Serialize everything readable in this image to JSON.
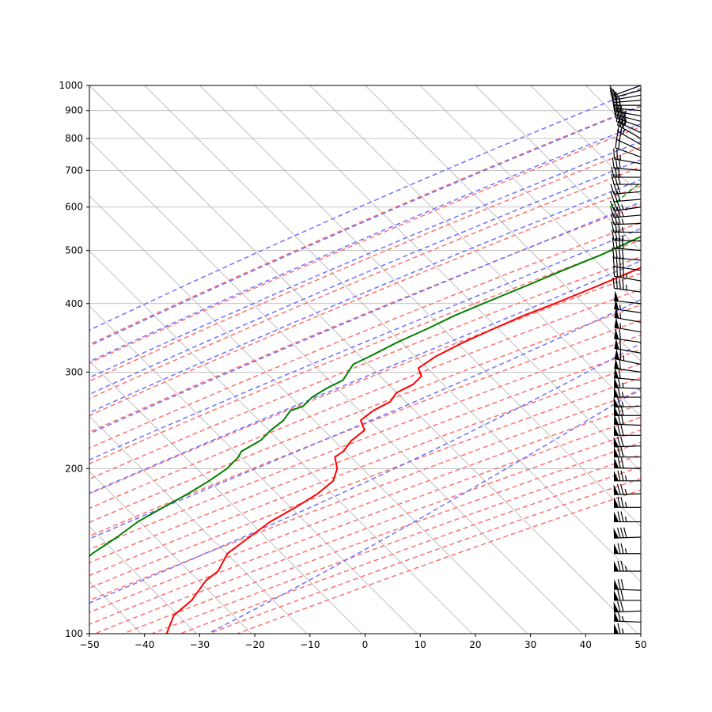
{
  "chart_data": {
    "type": "line",
    "title": "",
    "xlabel": "",
    "ylabel": "",
    "x_scale": "linear",
    "y_scale": "log",
    "y_inverted": true,
    "xlim": [
      -50,
      50
    ],
    "ylim": [
      1000,
      100
    ],
    "skew_degrees": 45,
    "grid": true,
    "x_ticks": [
      -50,
      -40,
      -30,
      -20,
      -10,
      0,
      10,
      20,
      30,
      40,
      50
    ],
    "x_tick_labels": [
      "−50",
      "−40",
      "−30",
      "−20",
      "−10",
      "0",
      "10",
      "20",
      "30",
      "40",
      "50"
    ],
    "y_ticks": [
      1000,
      900,
      800,
      700,
      600,
      500,
      400,
      300,
      200,
      100
    ],
    "y_tick_labels": [
      "1000",
      "900",
      "800",
      "700",
      "600",
      "500",
      "400",
      "300",
      "200",
      "100"
    ],
    "series": [
      {
        "kind": "temperature",
        "color": "#ff0000",
        "points": [
          [
            1000,
            8.3
          ],
          [
            970,
            4.6
          ],
          [
            940,
            2.5
          ],
          [
            910,
            1.0
          ],
          [
            880,
            0.2
          ],
          [
            850,
            3.0
          ],
          [
            830,
            9.5
          ],
          [
            810,
            14.0
          ],
          [
            790,
            11.5
          ],
          [
            760,
            6.5
          ],
          [
            730,
            2.5
          ],
          [
            700,
            0.0
          ],
          [
            670,
            -3.0
          ],
          [
            640,
            -5.0
          ],
          [
            610,
            -5.5
          ],
          [
            580,
            -6.5
          ],
          [
            550,
            -8.0
          ],
          [
            520,
            -10.5
          ],
          [
            490,
            -13.5
          ],
          [
            460,
            -17.0
          ],
          [
            430,
            -21.0
          ],
          [
            400,
            -25.5
          ],
          [
            380,
            -29.0
          ],
          [
            360,
            -32.0
          ],
          [
            340,
            -35.0
          ],
          [
            320,
            -37.5
          ],
          [
            305,
            -38.5
          ],
          [
            295,
            -36.5
          ],
          [
            285,
            -36.5
          ],
          [
            275,
            -38.0
          ],
          [
            265,
            -37.5
          ],
          [
            255,
            -39.0
          ],
          [
            245,
            -39.5
          ],
          [
            235,
            -37.0
          ],
          [
            225,
            -37.5
          ],
          [
            215,
            -37.0
          ],
          [
            210,
            -37.5
          ],
          [
            200,
            -35.0
          ],
          [
            190,
            -33.5
          ],
          [
            180,
            -34.0
          ],
          [
            170,
            -35.5
          ],
          [
            160,
            -37.5
          ],
          [
            150,
            -38.5
          ],
          [
            140,
            -39.5
          ],
          [
            130,
            -38.0
          ],
          [
            125,
            -38.5
          ],
          [
            115,
            -37.5
          ],
          [
            108,
            -38.0
          ],
          [
            100,
            -36.0
          ]
        ]
      },
      {
        "kind": "dewpoint",
        "color": "#008000",
        "points": [
          [
            1000,
            1.0
          ],
          [
            970,
            -1.0
          ],
          [
            940,
            -2.5
          ],
          [
            910,
            -3.5
          ],
          [
            880,
            -4.0
          ],
          [
            850,
            -4.5
          ],
          [
            830,
            2.0
          ],
          [
            810,
            7.0
          ],
          [
            790,
            1.0
          ],
          [
            760,
            -1.0
          ],
          [
            730,
            -3.5
          ],
          [
            700,
            -7.0
          ],
          [
            670,
            -10.0
          ],
          [
            640,
            -13.0
          ],
          [
            610,
            -15.0
          ],
          [
            580,
            -17.0
          ],
          [
            550,
            -20.0
          ],
          [
            520,
            -23.0
          ],
          [
            490,
            -26.0
          ],
          [
            460,
            -30.0
          ],
          [
            430,
            -34.0
          ],
          [
            400,
            -38.5
          ],
          [
            380,
            -41.5
          ],
          [
            360,
            -44.0
          ],
          [
            340,
            -47.0
          ],
          [
            320,
            -49.5
          ],
          [
            310,
            -51.0
          ],
          [
            300,
            -50.5
          ],
          [
            290,
            -50.0
          ],
          [
            280,
            -51.5
          ],
          [
            270,
            -52.5
          ],
          [
            260,
            -52.5
          ],
          [
            255,
            -54.0
          ],
          [
            245,
            -53.5
          ],
          [
            235,
            -54.0
          ],
          [
            225,
            -54.0
          ],
          [
            215,
            -55.5
          ],
          [
            210,
            -55.0
          ],
          [
            200,
            -55.0
          ],
          [
            190,
            -56.0
          ],
          [
            180,
            -57.5
          ],
          [
            170,
            -59.5
          ],
          [
            160,
            -61.5
          ],
          [
            150,
            -62.5
          ],
          [
            140,
            -64.0
          ],
          [
            130,
            -64.5
          ],
          [
            125,
            -64.0
          ],
          [
            120,
            -67.0
          ],
          [
            112,
            -68.5
          ],
          [
            106,
            -68.5
          ],
          [
            100,
            -68.0
          ]
        ]
      }
    ],
    "reference_lines": {
      "isotherms_color": "#b0b0b0",
      "dry_adiabats_color": "#ff7070",
      "moist_adiabats_color": "#7070ff",
      "mixing_ratio_color": "#00a000",
      "moist_adiabat_surface_temps": [
        -48,
        -40,
        -32,
        -24,
        -16,
        -8,
        0,
        8,
        16,
        24,
        32,
        40
      ],
      "mixing_ratio_g_per_kg": [
        0.4,
        1,
        2,
        4,
        7,
        10,
        16,
        24,
        32
      ],
      "mixing_ratio_top_hpa": 600
    },
    "wind_barbs": {
      "color": "#000000",
      "x_position": 50,
      "pressures": [
        1000,
        980,
        960,
        940,
        920,
        900,
        880,
        860,
        840,
        820,
        800,
        780,
        760,
        740,
        720,
        700,
        680,
        660,
        640,
        620,
        600,
        580,
        560,
        540,
        520,
        500,
        480,
        460,
        440,
        420,
        400,
        385,
        370,
        355,
        340,
        325,
        310,
        300,
        290,
        280,
        270,
        260,
        250,
        240,
        230,
        220,
        210,
        200,
        190,
        180,
        170,
        160,
        150,
        140,
        130,
        120,
        115,
        110,
        105,
        100
      ],
      "direction_deg": [
        250,
        255,
        260,
        265,
        270,
        275,
        280,
        285,
        290,
        295,
        300,
        300,
        295,
        290,
        280,
        275,
        270,
        270,
        265,
        265,
        262,
        265,
        268,
        270,
        272,
        275,
        275,
        278,
        280,
        278,
        276,
        278,
        280,
        280,
        278,
        280,
        282,
        278,
        275,
        272,
        270,
        268,
        270,
        272,
        270,
        268,
        270,
        272,
        270,
        268,
        270,
        270,
        268,
        270,
        270,
        272,
        270,
        268,
        272,
        270
      ],
      "speed_kt": [
        10,
        15,
        20,
        25,
        25,
        25,
        30,
        35,
        40,
        35,
        30,
        25,
        20,
        20,
        25,
        30,
        30,
        30,
        30,
        30,
        35,
        35,
        35,
        35,
        35,
        40,
        40,
        40,
        45,
        45,
        50,
        55,
        55,
        55,
        60,
        60,
        65,
        60,
        60,
        65,
        65,
        65,
        70,
        70,
        70,
        70,
        70,
        70,
        75,
        75,
        75,
        75,
        80,
        75,
        75,
        70,
        70,
        70,
        65,
        65
      ]
    }
  }
}
